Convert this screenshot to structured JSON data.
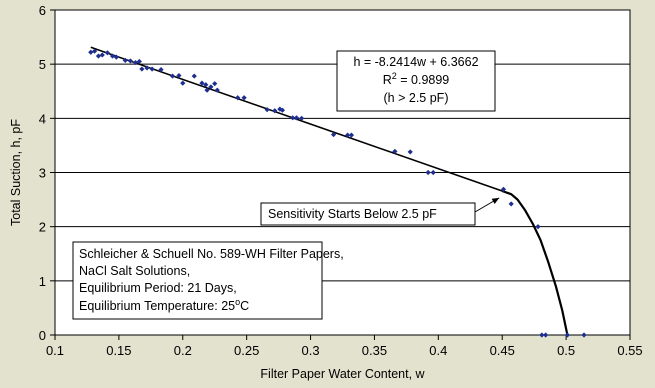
{
  "chart_data": {
    "type": "scatter",
    "xlabel": "Filter Paper Water Content, w",
    "ylabel": "Total Suction, h, pF",
    "xlim": [
      0.1,
      0.55
    ],
    "ylim": [
      0,
      6
    ],
    "x_ticks": [
      "0.1",
      "0.15",
      "0.2",
      "0.25",
      "0.3",
      "0.35",
      "0.4",
      "0.45",
      "0.5",
      "0.55"
    ],
    "y_ticks": [
      "0",
      "1",
      "2",
      "3",
      "4",
      "5",
      "6"
    ],
    "grid": "horizontal",
    "marker_color": "#1f2f8f",
    "line_color": "#000000",
    "plot_background": "#ffffff",
    "page_background": "#e2e2cf",
    "points": [
      {
        "x": 0.128,
        "y": 5.22
      },
      {
        "x": 0.131,
        "y": 5.24
      },
      {
        "x": 0.134,
        "y": 5.15
      },
      {
        "x": 0.137,
        "y": 5.17
      },
      {
        "x": 0.141,
        "y": 5.21
      },
      {
        "x": 0.145,
        "y": 5.15
      },
      {
        "x": 0.148,
        "y": 5.13
      },
      {
        "x": 0.155,
        "y": 5.07
      },
      {
        "x": 0.159,
        "y": 5.06
      },
      {
        "x": 0.163,
        "y": 5.03
      },
      {
        "x": 0.166,
        "y": 5.05
      },
      {
        "x": 0.168,
        "y": 4.91
      },
      {
        "x": 0.172,
        "y": 4.93
      },
      {
        "x": 0.176,
        "y": 4.91
      },
      {
        "x": 0.183,
        "y": 4.9
      },
      {
        "x": 0.192,
        "y": 4.78
      },
      {
        "x": 0.197,
        "y": 4.79
      },
      {
        "x": 0.2,
        "y": 4.65
      },
      {
        "x": 0.209,
        "y": 4.78
      },
      {
        "x": 0.215,
        "y": 4.65
      },
      {
        "x": 0.218,
        "y": 4.62
      },
      {
        "x": 0.219,
        "y": 4.52
      },
      {
        "x": 0.222,
        "y": 4.58
      },
      {
        "x": 0.225,
        "y": 4.64
      },
      {
        "x": 0.227,
        "y": 4.52
      },
      {
        "x": 0.243,
        "y": 4.38
      },
      {
        "x": 0.248,
        "y": 4.38
      },
      {
        "x": 0.266,
        "y": 4.16
      },
      {
        "x": 0.272,
        "y": 4.14
      },
      {
        "x": 0.276,
        "y": 4.17
      },
      {
        "x": 0.278,
        "y": 4.15
      },
      {
        "x": 0.286,
        "y": 4.01
      },
      {
        "x": 0.289,
        "y": 4.01
      },
      {
        "x": 0.293,
        "y": 4.0
      },
      {
        "x": 0.318,
        "y": 3.7
      },
      {
        "x": 0.329,
        "y": 3.69
      },
      {
        "x": 0.332,
        "y": 3.69
      },
      {
        "x": 0.366,
        "y": 3.39
      },
      {
        "x": 0.378,
        "y": 3.38
      },
      {
        "x": 0.392,
        "y": 3.0
      },
      {
        "x": 0.396,
        "y": 3.0
      },
      {
        "x": 0.451,
        "y": 2.69
      },
      {
        "x": 0.457,
        "y": 2.42
      },
      {
        "x": 0.478,
        "y": 2.0
      },
      {
        "x": 0.481,
        "y": 0.0
      },
      {
        "x": 0.484,
        "y": 0.0
      },
      {
        "x": 0.501,
        "y": 0.0
      },
      {
        "x": 0.514,
        "y": 0.0
      }
    ],
    "fit_line": {
      "x_start": 0.128,
      "x_end": 0.45,
      "slope": -8.2414,
      "intercept": 6.3662
    },
    "tail_curve": [
      {
        "x": 0.45,
        "y": 2.658
      },
      {
        "x": 0.457,
        "y": 2.6
      },
      {
        "x": 0.462,
        "y": 2.5
      },
      {
        "x": 0.468,
        "y": 2.3
      },
      {
        "x": 0.474,
        "y": 2.05
      },
      {
        "x": 0.48,
        "y": 1.75
      },
      {
        "x": 0.486,
        "y": 1.35
      },
      {
        "x": 0.492,
        "y": 0.9
      },
      {
        "x": 0.497,
        "y": 0.45
      },
      {
        "x": 0.501,
        "y": 0.0
      }
    ],
    "equation_box": {
      "line1": "h = -8.2414w + 6.3662",
      "r2_label": "R",
      "r2_sup": "2",
      "r2_value": " = 0.9899",
      "line3": "(h > 2.5 pF)"
    },
    "annotation": {
      "text": "Sensitivity Starts Below 2.5 pF",
      "arrow_to": {
        "x": 0.45,
        "y": 2.55
      }
    },
    "info_box": {
      "line1": "Schleicher & Schuell No. 589-WH Filter Papers,",
      "line2": "NaCl Salt Solutions,",
      "line3": "Equilibrium Period: 21 Days,",
      "line4_prefix": "Equilibrium Temperature: 25",
      "line4_sup": "o",
      "line4_suffix": "C"
    }
  }
}
